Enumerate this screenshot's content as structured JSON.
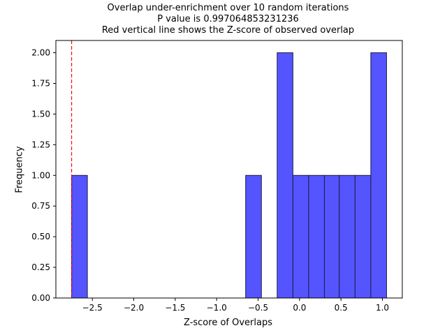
{
  "chart_data": {
    "type": "bar",
    "title_lines": [
      "Overlap under-enrichment over 10 random iterations",
      "P value is 0.997064853231236",
      "Red vertical line shows the Z-score of observed overlap"
    ],
    "xlabel": "Z-score of Overlaps",
    "ylabel": "Frequency",
    "xlim": [
      -2.94,
      1.24
    ],
    "ylim": [
      0,
      2.1
    ],
    "xticks": [
      -2.5,
      -2.0,
      -1.5,
      -1.0,
      -0.5,
      0.0,
      0.5,
      1.0
    ],
    "xtick_labels": [
      "−2.5",
      "−2.0",
      "−1.5",
      "−1.0",
      "−0.5",
      "0.0",
      "0.5",
      "1.0"
    ],
    "yticks": [
      0,
      0.25,
      0.5,
      0.75,
      1.0,
      1.25,
      1.5,
      1.75,
      2.0
    ],
    "ytick_labels": [
      "0.00",
      "0.25",
      "0.50",
      "0.75",
      "1.00",
      "1.25",
      "1.50",
      "1.75",
      "2.00"
    ],
    "bins": [
      {
        "x0": -2.75,
        "x1": -2.56,
        "count": 1
      },
      {
        "x0": -0.65,
        "x1": -0.46,
        "count": 1
      },
      {
        "x0": -0.27,
        "x1": -0.08,
        "count": 2
      },
      {
        "x0": -0.08,
        "x1": 0.11,
        "count": 1
      },
      {
        "x0": 0.11,
        "x1": 0.3,
        "count": 1
      },
      {
        "x0": 0.3,
        "x1": 0.48,
        "count": 1
      },
      {
        "x0": 0.48,
        "x1": 0.67,
        "count": 1
      },
      {
        "x0": 0.67,
        "x1": 0.86,
        "count": 1
      },
      {
        "x0": 0.86,
        "x1": 1.05,
        "count": 2
      }
    ],
    "bar_color": "#5555ff",
    "bar_edge_color": "#1a1a4a",
    "observed_zscore": -2.75,
    "observed_line_color": "#ff0000",
    "grid": false
  }
}
